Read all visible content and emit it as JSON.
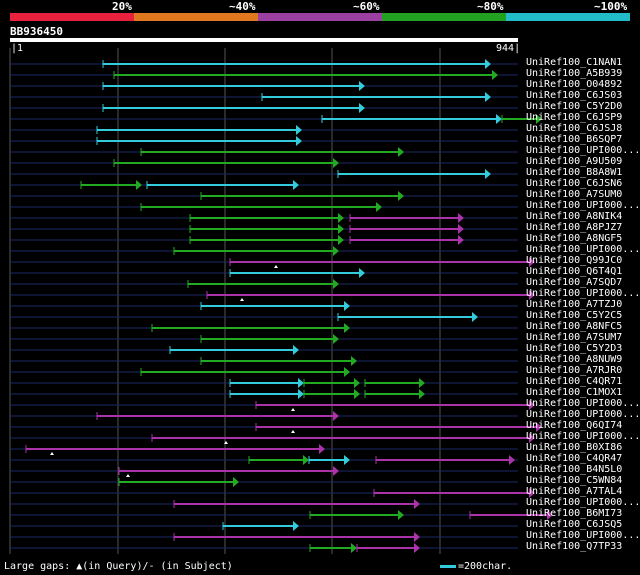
{
  "query": {
    "name": "BB936450",
    "start": "1",
    "end": "944",
    "length": 944
  },
  "scale": {
    "labels": [
      "20%",
      "~40%",
      "~60%",
      "~80%",
      "~100%"
    ],
    "colors": [
      "#e8213c",
      "#e07820",
      "#9b3fa0",
      "#22a022",
      "#22bcc8"
    ]
  },
  "colors": {
    "cyan": "#33ccdd",
    "green": "#22aa22",
    "magenta": "#aa33aa",
    "gridline": "#555555",
    "rowline": "#1a2a66"
  },
  "footer": {
    "legend": "Large gaps: ▲(in Query)/- (in Subject)",
    "scale_text": "=200char."
  },
  "hits": [
    {
      "label": "UniRef100_C1NAN1",
      "segs": [
        [
          103,
          491,
          "cyan"
        ]
      ]
    },
    {
      "label": "UniRef100_A5B939",
      "segs": [
        [
          114,
          498,
          "green"
        ]
      ]
    },
    {
      "label": "UniRef100_O04892",
      "segs": [
        [
          103,
          365,
          "cyan"
        ]
      ]
    },
    {
      "label": "UniRef100_C6JS03",
      "segs": [
        [
          262,
          491,
          "cyan"
        ]
      ]
    },
    {
      "label": "UniRef100_C5Y2D0",
      "segs": [
        [
          103,
          365,
          "cyan"
        ]
      ]
    },
    {
      "label": "UniRef100_C6JSP9",
      "segs": [
        [
          322,
          502,
          "cyan"
        ],
        [
          502,
          542,
          "green"
        ]
      ]
    },
    {
      "label": "UniRef100_C6JSJ8",
      "segs": [
        [
          97,
          302,
          "cyan"
        ]
      ]
    },
    {
      "label": "UniRef100_B6SQP7",
      "segs": [
        [
          97,
          302,
          "cyan"
        ]
      ]
    },
    {
      "label": "UniRef100_UPI000...",
      "segs": [
        [
          141,
          404,
          "green"
        ]
      ]
    },
    {
      "label": "UniRef100_A9U509",
      "segs": [
        [
          114,
          339,
          "green"
        ]
      ]
    },
    {
      "label": "UniRef100_B8A8W1",
      "segs": [
        [
          338,
          491,
          "cyan"
        ]
      ]
    },
    {
      "label": "UniRef100_C6JSN6",
      "segs": [
        [
          81,
          142,
          "green"
        ],
        [
          147,
          299,
          "cyan"
        ]
      ]
    },
    {
      "label": "UniRef100_A7SUM0",
      "segs": [
        [
          201,
          404,
          "green"
        ]
      ]
    },
    {
      "label": "UniRef100_UPI000...",
      "segs": [
        [
          141,
          382,
          "green"
        ]
      ]
    },
    {
      "label": "UniRef100_A8NIK4",
      "segs": [
        [
          190,
          344,
          "green"
        ],
        [
          350,
          464,
          "magenta"
        ]
      ]
    },
    {
      "label": "UniRef100_A8PJZ7",
      "segs": [
        [
          190,
          344,
          "green"
        ],
        [
          350,
          464,
          "magenta"
        ]
      ]
    },
    {
      "label": "UniRef100_A8NGF5",
      "segs": [
        [
          190,
          344,
          "green"
        ],
        [
          350,
          464,
          "magenta"
        ]
      ]
    },
    {
      "label": "UniRef100_UPI000...",
      "segs": [
        [
          174,
          339,
          "green"
        ]
      ]
    },
    {
      "label": "UniRef100_Q99JC0",
      "segs": [
        [
          230,
          535,
          "magenta"
        ]
      ],
      "qgap": 276
    },
    {
      "label": "UniRef100_Q6T4Q1",
      "segs": [
        [
          230,
          365,
          "cyan"
        ]
      ]
    },
    {
      "label": "UniRef100_A7SQD7",
      "segs": [
        [
          188,
          339,
          "green"
        ]
      ]
    },
    {
      "label": "UniRef100_UPI000...",
      "segs": [
        [
          207,
          535,
          "magenta"
        ]
      ],
      "qgap": 242
    },
    {
      "label": "UniRef100_A7TZJ0",
      "segs": [
        [
          201,
          350,
          "cyan"
        ]
      ]
    },
    {
      "label": "UniRef100_C5Y2C5",
      "segs": [
        [
          338,
          478,
          "cyan"
        ]
      ]
    },
    {
      "label": "UniRef100_A8NFC5",
      "segs": [
        [
          152,
          350,
          "green"
        ]
      ]
    },
    {
      "label": "UniRef100_A7SUM7",
      "segs": [
        [
          201,
          339,
          "green"
        ]
      ]
    },
    {
      "label": "UniRef100_C5Y2D3",
      "segs": [
        [
          170,
          299,
          "cyan"
        ]
      ]
    },
    {
      "label": "UniRef100_A8NUW9",
      "segs": [
        [
          201,
          357,
          "green"
        ]
      ]
    },
    {
      "label": "UniRef100_A7RJR0",
      "segs": [
        [
          141,
          350,
          "green"
        ]
      ]
    },
    {
      "label": "UniRef100_C4QR71",
      "segs": [
        [
          230,
          304,
          "cyan"
        ],
        [
          304,
          360,
          "green"
        ],
        [
          365,
          425,
          "green"
        ]
      ]
    },
    {
      "label": "UniRef100_C1MOX1",
      "segs": [
        [
          230,
          304,
          "cyan"
        ],
        [
          304,
          360,
          "green"
        ],
        [
          365,
          425,
          "green"
        ]
      ]
    },
    {
      "label": "UniRef100_UPI000...",
      "segs": [
        [
          256,
          535,
          "magenta"
        ]
      ],
      "qgap": 293
    },
    {
      "label": "UniRef100_UPI000...",
      "segs": [
        [
          97,
          339,
          "magenta"
        ]
      ]
    },
    {
      "label": "UniRef100_Q6QI74",
      "segs": [
        [
          256,
          542,
          "magenta"
        ]
      ],
      "qgap": 293
    },
    {
      "label": "UniRef100_UPI000...",
      "segs": [
        [
          152,
          535,
          "magenta"
        ]
      ],
      "qgap": 226
    },
    {
      "label": "UniRef100_B0XI86",
      "segs": [
        [
          26,
          325,
          "magenta"
        ]
      ],
      "qgap": 52
    },
    {
      "label": "UniRef100_C4QR47",
      "segs": [
        [
          249,
          309,
          "green"
        ],
        [
          309,
          350,
          "cyan"
        ],
        [
          376,
          515,
          "magenta"
        ]
      ]
    },
    {
      "label": "UniRef100_B4N5L0",
      "segs": [
        [
          119,
          339,
          "magenta"
        ]
      ],
      "qgap": 128
    },
    {
      "label": "UniRef100_C5WN84",
      "segs": [
        [
          119,
          239,
          "green"
        ]
      ]
    },
    {
      "label": "UniRef100_A7TAL4",
      "segs": [
        [
          374,
          535,
          "magenta"
        ]
      ]
    },
    {
      "label": "UniRef100_UPI000...",
      "segs": [
        [
          174,
          420,
          "magenta"
        ]
      ]
    },
    {
      "label": "UniRef100_B6MI73",
      "segs": [
        [
          310,
          404,
          "green"
        ],
        [
          470,
          553,
          "magenta"
        ]
      ]
    },
    {
      "label": "UniRef100_C6JSQ5",
      "segs": [
        [
          223,
          299,
          "cyan"
        ]
      ]
    },
    {
      "label": "UniRef100_UPI000...",
      "segs": [
        [
          174,
          420,
          "magenta"
        ]
      ]
    },
    {
      "label": "UniRef100_Q7TP33",
      "segs": [
        [
          310,
          357,
          "green"
        ],
        [
          357,
          420,
          "magenta"
        ]
      ]
    }
  ]
}
